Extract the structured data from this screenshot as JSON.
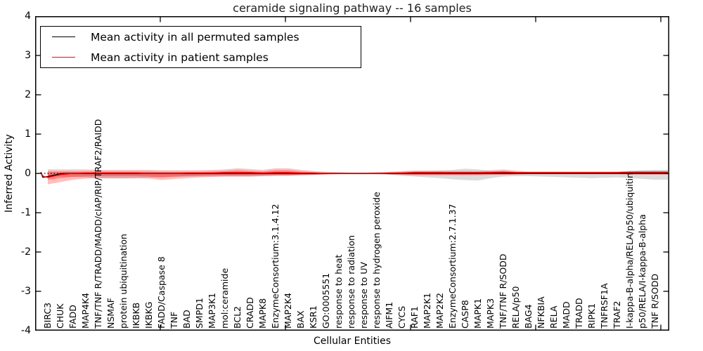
{
  "title": "ceramide signaling pathway -- 16 samples",
  "axes": {
    "x_label": "Cellular Entities",
    "y_label": "Inferred Activity",
    "y_tick_labels": [
      "4",
      "3",
      "2",
      "1",
      "0",
      "-1",
      "-2",
      "-3",
      "-4"
    ]
  },
  "legend": {
    "items": [
      {
        "label": "Mean activity in all permuted samples",
        "color": "#000000"
      },
      {
        "label": "Mean activity in patient samples",
        "color": "#ff0000"
      }
    ]
  },
  "chart_data": {
    "type": "line",
    "title": "ceramide signaling pathway -- 16 samples",
    "xlabel": "Cellular Entities",
    "ylabel": "Inferred Activity",
    "ylim": [
      -4,
      4
    ],
    "yticks": [
      4,
      3,
      2,
      1,
      0,
      -1,
      -2,
      -3,
      -4
    ],
    "grid": false,
    "legend_position": "upper left",
    "zero_line": {
      "style": "dotted",
      "color": "#000000",
      "y": 0
    },
    "categories": [
      "BIRC3",
      "CHUK",
      "FADD",
      "MAP4K4",
      "TNF/TNF R/TRADD/MADD/cIAP/RIP/TRAF2/RAIDD",
      "NSMAF",
      "protein ubiquitination",
      "IKBKB",
      "IKBKG",
      "FADD/Caspase 8",
      "TNF",
      "BAD",
      "SMPD1",
      "MAP3K1",
      "mol:ceramide",
      "BCL2",
      "CRADD",
      "MAPK8",
      "EnzymeConsortium:3.1.4.12",
      "MAP2K4",
      "BAX",
      "KSR1",
      "GO:0005551",
      "response to heat",
      "response to radiation",
      "response to UV",
      "response to hydrogen peroxide",
      "AIFM1",
      "CYCS",
      "RAF1",
      "MAP2K1",
      "MAP2K2",
      "EnzymeConsortium:2.7.1.37",
      "CASP8",
      "MAPK1",
      "MAPK3",
      "TNF/TNF R/SODD",
      "RELA/p50",
      "BAG4",
      "NFKBIA",
      "RELA",
      "MADD",
      "TRADD",
      "RIPK1",
      "TNFRSF1A",
      "TRAF2",
      "I-kappa-B-alpha/RELA/p50/ubiquitin",
      "p50/RELA/I-kappa-B-alpha",
      "TNF R/SODD"
    ],
    "series": [
      {
        "name": "Mean activity in all permuted samples",
        "color": "#000000",
        "values": [
          -0.08,
          -0.01,
          0,
          0,
          0,
          0,
          0,
          0,
          0,
          0,
          0,
          0,
          0,
          0,
          0,
          0,
          0,
          0,
          0,
          0,
          0,
          0,
          0,
          0,
          0,
          0,
          0,
          0,
          0,
          0,
          0,
          0,
          0,
          0,
          0,
          0,
          0,
          0,
          0,
          0,
          0,
          0,
          0,
          0,
          0,
          0,
          0,
          0,
          0
        ]
      },
      {
        "name": "Mean activity in patient samples",
        "color": "#ff0000",
        "values": [
          -0.1,
          -0.03,
          0.0,
          0.01,
          0.01,
          0.01,
          0.01,
          0.01,
          0.0,
          0.0,
          0.0,
          0.01,
          0.01,
          0.01,
          0.02,
          0.02,
          0.02,
          0.01,
          0.02,
          0.02,
          0.01,
          0.01,
          0.0,
          0.0,
          0.0,
          0.0,
          0.0,
          0.01,
          0.01,
          0.02,
          0.02,
          0.02,
          0.02,
          0.02,
          0.02,
          0.02,
          0.03,
          0.02,
          0.02,
          0.02,
          0.02,
          0.02,
          0.02,
          0.02,
          0.02,
          0.02,
          0.03,
          0.03,
          0.03
        ]
      }
    ],
    "bands": [
      {
        "name": "permuted-sample-range",
        "color": "#999999",
        "opacity": 0.35,
        "upper": [
          0.02,
          0.03,
          0.03,
          0.03,
          0.03,
          0.03,
          0.03,
          0.03,
          0.03,
          0.03,
          0.03,
          0.03,
          0.03,
          0.03,
          0.03,
          0.03,
          0.03,
          0.03,
          0.03,
          0.03,
          0.02,
          0.02,
          0.01,
          0.01,
          0.01,
          0.01,
          0.01,
          0.02,
          0.04,
          0.06,
          0.06,
          0.07,
          0.09,
          0.12,
          0.1,
          0.06,
          0.04,
          0.03,
          0.03,
          0.03,
          0.03,
          0.03,
          0.03,
          0.03,
          0.03,
          0.04,
          0.06,
          0.08,
          0.09
        ],
        "lower": [
          -0.06,
          -0.08,
          -0.09,
          -0.1,
          -0.12,
          -0.13,
          -0.13,
          -0.12,
          -0.11,
          -0.1,
          -0.09,
          -0.08,
          -0.08,
          -0.08,
          -0.08,
          -0.08,
          -0.08,
          -0.07,
          -0.06,
          -0.06,
          -0.05,
          -0.04,
          -0.03,
          -0.02,
          -0.02,
          -0.02,
          -0.02,
          -0.03,
          -0.06,
          -0.08,
          -0.1,
          -0.12,
          -0.15,
          -0.17,
          -0.18,
          -0.12,
          -0.08,
          -0.07,
          -0.07,
          -0.08,
          -0.09,
          -0.1,
          -0.11,
          -0.12,
          -0.11,
          -0.1,
          -0.12,
          -0.14,
          -0.16
        ]
      },
      {
        "name": "patient-sample-range-outer",
        "color": "#ff0000",
        "opacity": 0.25,
        "upper": [
          0.1,
          0.1,
          0.1,
          0.1,
          0.09,
          0.09,
          0.09,
          0.09,
          0.09,
          0.08,
          0.08,
          0.08,
          0.08,
          0.09,
          0.1,
          0.13,
          0.11,
          0.09,
          0.13,
          0.13,
          0.09,
          0.06,
          0.04,
          0.03,
          0.02,
          0.02,
          0.03,
          0.04,
          0.06,
          0.07,
          0.07,
          0.07,
          0.06,
          0.06,
          0.06,
          0.08,
          0.1,
          0.07,
          0.05,
          0.05,
          0.05,
          0.05,
          0.05,
          0.05,
          0.05,
          0.05,
          0.06,
          0.06,
          0.06
        ],
        "lower": [
          -0.28,
          -0.22,
          -0.16,
          -0.13,
          -0.12,
          -0.12,
          -0.12,
          -0.12,
          -0.13,
          -0.17,
          -0.14,
          -0.12,
          -0.1,
          -0.09,
          -0.08,
          -0.08,
          -0.08,
          -0.07,
          -0.06,
          -0.06,
          -0.05,
          -0.04,
          -0.03,
          -0.02,
          -0.02,
          -0.02,
          -0.02,
          -0.03,
          -0.04,
          -0.05,
          -0.05,
          -0.05,
          -0.05,
          -0.05,
          -0.05,
          -0.04,
          -0.04,
          -0.03,
          -0.02,
          -0.02,
          -0.02,
          -0.02,
          -0.02,
          -0.02,
          -0.02,
          -0.02,
          -0.03,
          -0.03,
          -0.03
        ]
      },
      {
        "name": "patient-sample-range-inner",
        "color": "#ff0000",
        "opacity": 0.3,
        "upper": [
          0.05,
          0.05,
          0.05,
          0.05,
          0.05,
          0.05,
          0.05,
          0.05,
          0.05,
          0.04,
          0.04,
          0.04,
          0.04,
          0.05,
          0.06,
          0.08,
          0.06,
          0.05,
          0.08,
          0.08,
          0.05,
          0.03,
          0.02,
          0.02,
          0.01,
          0.01,
          0.02,
          0.02,
          0.03,
          0.04,
          0.04,
          0.04,
          0.03,
          0.03,
          0.03,
          0.05,
          0.06,
          0.04,
          0.03,
          0.03,
          0.03,
          0.03,
          0.03,
          0.03,
          0.03,
          0.03,
          0.03,
          0.03,
          0.03
        ],
        "lower": [
          -0.16,
          -0.12,
          -0.09,
          -0.08,
          -0.07,
          -0.07,
          -0.07,
          -0.07,
          -0.08,
          -0.1,
          -0.08,
          -0.07,
          -0.06,
          -0.05,
          -0.05,
          -0.05,
          -0.05,
          -0.04,
          -0.04,
          -0.04,
          -0.03,
          -0.03,
          -0.02,
          -0.01,
          -0.01,
          -0.01,
          -0.01,
          -0.02,
          -0.02,
          -0.03,
          -0.03,
          -0.03,
          -0.03,
          -0.03,
          -0.03,
          -0.02,
          -0.02,
          -0.02,
          -0.01,
          -0.01,
          -0.01,
          -0.01,
          -0.01,
          -0.01,
          -0.01,
          -0.01,
          -0.02,
          -0.02,
          -0.02
        ]
      }
    ]
  }
}
